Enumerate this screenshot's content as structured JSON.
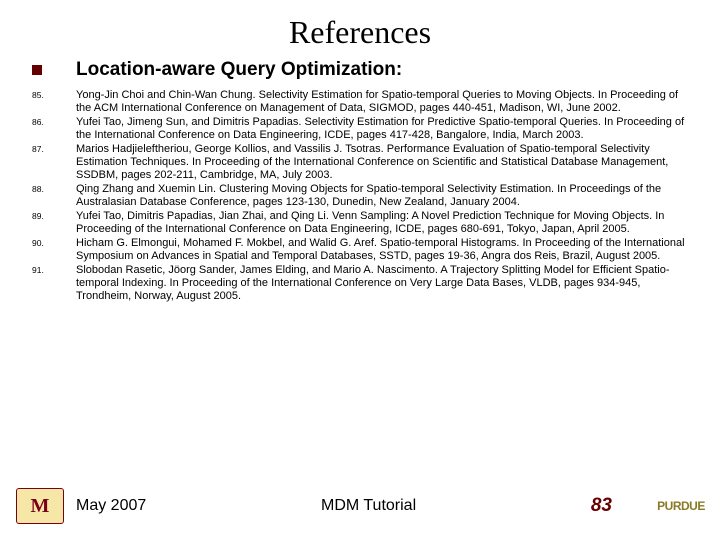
{
  "title": "References",
  "section_heading": "Location-aware Query Optimization:",
  "references": [
    {
      "num": "85.",
      "text": "Yong-Jin Choi and Chin-Wan Chung. Selectivity Estimation for Spatio-temporal Queries to Moving Objects. In Proceeding of the ACM International Conference on Management of Data, SIGMOD, pages 440-451, Madison, WI, June 2002."
    },
    {
      "num": "86.",
      "text": "Yufei Tao, Jimeng Sun, and Dimitris Papadias. Selectivity Estimation for Predictive Spatio-temporal Queries. In Proceeding of the International Conference on Data Engineering, ICDE, pages 417-428, Bangalore, India, March 2003."
    },
    {
      "num": "87.",
      "text": "Marios Hadjieleftheriou, George Kollios, and Vassilis J. Tsotras. Performance Evaluation of Spatio-temporal Selectivity Estimation Techniques. In Proceeding of the International Conference on Scientific and Statistical Database Management, SSDBM, pages 202-211, Cambridge, MA, July 2003."
    },
    {
      "num": "88.",
      "text": "Qing Zhang and Xuemin Lin. Clustering Moving Objects for Spatio-temporal Selectivity Estimation. In Proceedings of the Australasian Database Conference, pages 123-130, Dunedin, New Zealand, January 2004."
    },
    {
      "num": "89.",
      "text": "Yufei Tao, Dimitris Papadias, Jian Zhai, and Qing Li. Venn Sampling: A Novel Prediction Technique for Moving Objects. In Proceeding of the International Conference on Data Engineering, ICDE, pages 680-691, Tokyo, Japan, April 2005."
    },
    {
      "num": "90.",
      "text": "Hicham G. Elmongui, Mohamed F. Mokbel, and Walid G. Aref. Spatio-temporal Histograms. In Proceeding of the International Symposium on Advances in Spatial and Temporal Databases, SSTD, pages 19-36, Angra dos Reis, Brazil, August 2005."
    },
    {
      "num": "91.",
      "text": "Slobodan Rasetic, Jöorg Sander, James Elding, and Mario A. Nascimento. A Trajectory Splitting Model for Efficient Spatio-temporal Indexing. In Proceeding of the International Conference on Very Large Data Bases, VLDB, pages 934-945, Trondheim, Norway, August 2005."
    }
  ],
  "footer": {
    "date": "May 2007",
    "label": "MDM Tutorial",
    "page": "83",
    "logo_left": "M",
    "logo_right": "PURDUE"
  },
  "colors": {
    "accent": "#650000",
    "text": "#000000",
    "mn_bg": "#f6e7a6",
    "mn_border": "#7a0019",
    "purdue": "#8a7a28"
  }
}
